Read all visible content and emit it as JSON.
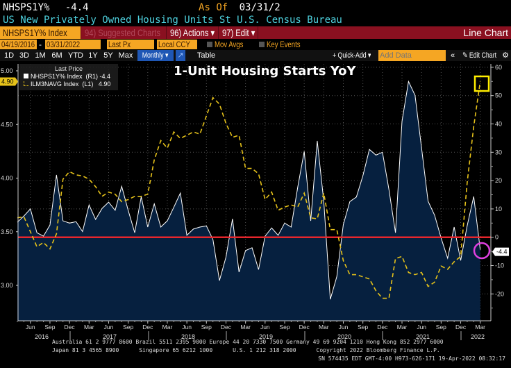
{
  "header": {
    "ticker": "NHSPS1Y%",
    "last": "-4.4",
    "as_of_label": "As Of",
    "as_of_date": "03/31/2",
    "description": "US New Privately Owned Housing Units St U.S. Census Bureau"
  },
  "toolbar": {
    "security": "NHSPS1Y% Index",
    "suggested": "94) Suggested Charts",
    "actions": "96) Actions ▾",
    "edit": "97) Edit ▾",
    "chart_type": "Line Chart"
  },
  "params": {
    "start": "04/19/2016",
    "sep": "-",
    "end": "03/31/2022",
    "field": "Last Px",
    "currency": "Local CCY",
    "mov_avgs": "Mov Avgs",
    "key_events": "Key Events"
  },
  "periods": {
    "items": [
      "1D",
      "3D",
      "1M",
      "6M",
      "YTD",
      "1Y",
      "5Y",
      "Max"
    ],
    "frequency": "Monthly ▾",
    "table": "Table",
    "quick_add": "+ Quick-Add ▾",
    "add_data_placeholder": "Add Data",
    "edit_chart": "✎ Edit Chart",
    "collapse": "«",
    "settings": "⚙"
  },
  "legend": {
    "title": "Last Price",
    "items": [
      "NHSPS1Y% Index  (R1) -4.4",
      "ILM3NAVG Index  (L1)   4.90"
    ]
  },
  "footer": [
    "Australia 61 2 9777 8600 Brazil 5511 2395 9000 Europe 44 20 7330 7500 Germany 49 69 9204 1210 Hong Kong 852 2977 6000",
    "Japan 81 3 4565 8900      Singapore 65 6212 1000      U.S. 1 212 318 2000      Copyright 2022 Bloomberg Finance L.P.",
    "SN 574435 EDT  GMT-4:00 H973-626-171 19-Apr-2022 08:32:17"
  ],
  "chart_data": {
    "type": "area+line",
    "title": "1-Unit Housing Starts YoY",
    "x_start": "2016-04",
    "x_end": "2022-03",
    "frequency": "monthly",
    "x_month_labels": [
      "Jun",
      "Sep",
      "Dec",
      "Mar"
    ],
    "x_year_labels": [
      "2016",
      "2017",
      "2018",
      "2019",
      "2020",
      "2021",
      "2022"
    ],
    "right_axis": {
      "ticks": [
        60,
        50,
        40,
        30,
        20,
        10,
        0,
        -10,
        -20
      ],
      "range": [
        -29,
        61
      ]
    },
    "left_axis": {
      "ticks": [
        "5.00",
        "4.50",
        "4.00",
        "3.50",
        "3.00"
      ],
      "range": [
        2.67,
        5.07
      ]
    },
    "grid": true,
    "legend_position": "top-left",
    "reference_line": {
      "axis": "right",
      "value": 0,
      "color": "#e8262c"
    },
    "series": [
      {
        "name": "NHSPS1Y% Index",
        "axis": "right",
        "style": "area",
        "color": "#ffffff",
        "fill": "#06203f",
        "last_label": "-4.4",
        "values": [
          5.3,
          7.5,
          10,
          1.6,
          0.4,
          4.3,
          22,
          5.8,
          5,
          5.5,
          2,
          11.4,
          6.3,
          10.2,
          12.4,
          9.5,
          18,
          9.5,
          1.6,
          14.3,
          3.6,
          11.8,
          3.6,
          5.8,
          10.6,
          15.6,
          0.7,
          2.9,
          3.6,
          4,
          -0.8,
          -15.3,
          -7,
          6.5,
          -12.3,
          -4.7,
          -3.7,
          -11.4,
          0.4,
          3.3,
          0.7,
          5,
          3.6,
          17.6,
          30.3,
          5.8,
          34,
          12.7,
          -21.9,
          -13.9,
          4.5,
          12.6,
          14.2,
          21.7,
          31,
          29,
          30,
          16.8,
          1.6,
          40.9,
          55,
          50.1,
          31.5,
          12.7,
          7.8,
          -0.3,
          -7.4,
          3.6,
          -8.2,
          4.1,
          14.4,
          -4.4
        ]
      },
      {
        "name": "ILM3NAVG Index",
        "axis": "left",
        "style": "dashed",
        "color": "#e6c21a",
        "last_label": "4.90",
        "values": [
          3.63,
          3.64,
          3.5,
          3.36,
          3.4,
          3.34,
          3.48,
          3.99,
          4.06,
          4.03,
          4.02,
          3.99,
          3.92,
          3.83,
          3.87,
          3.85,
          3.78,
          3.8,
          3.83,
          3.83,
          3.85,
          4.17,
          4.35,
          4.28,
          4.43,
          4.37,
          4.4,
          4.43,
          4.41,
          4.58,
          4.75,
          4.69,
          4.51,
          4.38,
          4.4,
          4.09,
          4.09,
          4.04,
          3.8,
          3.87,
          3.7,
          3.73,
          3.75,
          3.73,
          3.86,
          3.63,
          3.62,
          3.86,
          3.52,
          3.52,
          3.23,
          3.1,
          3.1,
          3.08,
          3.06,
          2.95,
          2.88,
          2.88,
          3.25,
          3.27,
          3.12,
          3.1,
          3.12,
          2.99,
          3.03,
          3.18,
          3.15,
          3.22,
          3.27,
          3.96,
          4.48,
          4.9
        ]
      }
    ]
  }
}
